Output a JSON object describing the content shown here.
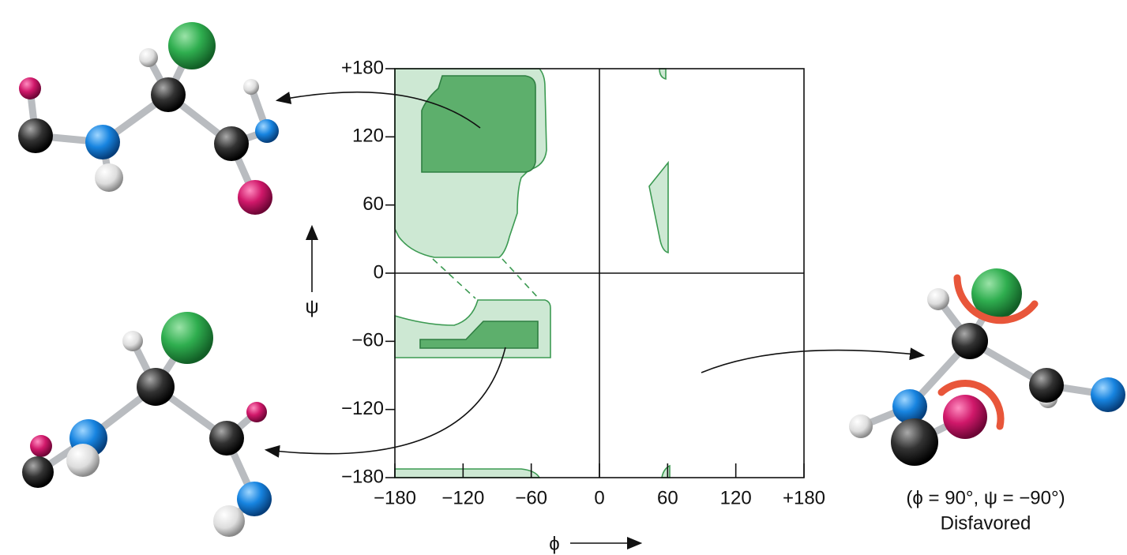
{
  "chart_data": {
    "type": "contour",
    "xlim": [
      -180,
      180
    ],
    "ylim": [
      -180,
      180
    ],
    "xticks": [
      {
        "value": -180,
        "label": "−180"
      },
      {
        "value": -120,
        "label": "−120"
      },
      {
        "value": -60,
        "label": "−60"
      },
      0,
      60,
      120,
      {
        "value": 180,
        "label": "+180"
      }
    ],
    "yticks": [
      {
        "value": -180,
        "label": "−180"
      },
      {
        "value": -120,
        "label": "−120"
      },
      {
        "value": -60,
        "label": "−60"
      },
      0,
      60,
      120,
      {
        "value": 180,
        "label": "+180"
      }
    ],
    "x_label": "ϕ",
    "y_label": "ψ",
    "annotations": [
      "(ϕ = 90°, ψ = −90°)",
      "Disfavored"
    ]
  }
}
